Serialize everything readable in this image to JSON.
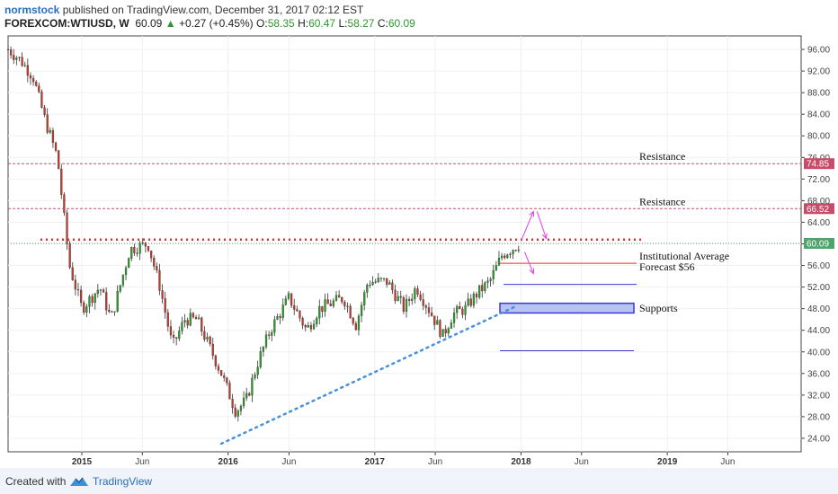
{
  "header": {
    "author": "normstock",
    "published": "published on TradingView.com, December 31, 2017 02:12 EST",
    "symbol": "FOREXCOM:WTIUSD, W",
    "last": "60.09",
    "change": "+0.27 (+0.45%)",
    "o_label": "O:",
    "o_value": "58.35",
    "h_label": "H:",
    "h_value": "60.47",
    "l_label": "L:",
    "l_value": "58.27",
    "c_label": "C:",
    "c_value": "60.09"
  },
  "footer": {
    "created": "Created with",
    "brand": "TradingView"
  },
  "colors": {
    "up": "#2b9a2b",
    "down": "#c0392b",
    "resistance": "#c84b6a",
    "dotted_resistance": "#e03030",
    "trendline": "#4a90d9",
    "support": "#3a3ad0",
    "forecast": "#e03030",
    "arrows": "#e040e0",
    "price_tag": "#4fa36b"
  },
  "chart_data": {
    "type": "candlestick",
    "y_axis": {
      "ticks": [
        "96.00",
        "92.00",
        "88.00",
        "84.00",
        "80.00",
        "76.00",
        "72.00",
        "68.00",
        "64.00",
        "60.00",
        "56.00",
        "52.00",
        "48.00",
        "44.00",
        "40.00",
        "36.00",
        "32.00",
        "28.00",
        "24.00"
      ],
      "ylim": [
        21.5,
        98.5
      ]
    },
    "x_axis": {
      "ticks": [
        {
          "label": "2015",
          "year": true
        },
        {
          "label": "Jun",
          "year": false
        },
        {
          "label": "2016",
          "year": true
        },
        {
          "label": "Jun",
          "year": false
        },
        {
          "label": "2017",
          "year": true
        },
        {
          "label": "Jun",
          "year": false
        },
        {
          "label": "2018",
          "year": true
        },
        {
          "label": "Jun",
          "year": false
        },
        {
          "label": "2019",
          "year": true
        },
        {
          "label": "Jun",
          "year": false
        }
      ]
    },
    "price_path": [
      [
        "2014-07-01",
        96
      ],
      [
        "2014-08-01",
        94
      ],
      [
        "2014-09-01",
        91
      ],
      [
        "2014-10-01",
        83
      ],
      [
        "2014-11-01",
        76
      ],
      [
        "2014-12-01",
        56
      ],
      [
        "2015-01-01",
        48
      ],
      [
        "2015-02-15",
        52
      ],
      [
        "2015-03-15",
        46
      ],
      [
        "2015-05-01",
        59
      ],
      [
        "2015-06-15",
        60
      ],
      [
        "2015-07-15",
        52
      ],
      [
        "2015-08-15",
        41
      ],
      [
        "2015-09-15",
        46
      ],
      [
        "2015-10-15",
        46
      ],
      [
        "2015-11-15",
        41
      ],
      [
        "2015-12-15",
        36
      ],
      [
        "2016-01-20",
        29
      ],
      [
        "2016-02-15",
        31
      ],
      [
        "2016-03-15",
        38
      ],
      [
        "2016-04-15",
        44
      ],
      [
        "2016-06-01",
        50
      ],
      [
        "2016-07-15",
        44
      ],
      [
        "2016-08-15",
        48
      ],
      [
        "2016-10-15",
        50
      ],
      [
        "2016-11-15",
        45
      ],
      [
        "2016-12-15",
        53
      ],
      [
        "2017-02-01",
        53
      ],
      [
        "2017-03-15",
        48
      ],
      [
        "2017-04-15",
        52
      ],
      [
        "2017-05-15",
        48
      ],
      [
        "2017-06-20",
        43
      ],
      [
        "2017-07-15",
        47
      ],
      [
        "2017-08-15",
        48
      ],
      [
        "2017-09-15",
        51
      ],
      [
        "2017-10-15",
        53
      ],
      [
        "2017-11-15",
        58
      ],
      [
        "2017-12-31",
        60.09
      ]
    ],
    "levels": [
      {
        "name": "Resistance",
        "value": 74.85,
        "tag": "74.85",
        "style": "dashed"
      },
      {
        "name": "Resistance",
        "value": 66.52,
        "tag": "66.52",
        "style": "dashed"
      },
      {
        "name": "",
        "value": 60.8,
        "tag": "",
        "style": "dotted"
      },
      {
        "name": "",
        "value": 60.09,
        "tag": "60.09",
        "style": "last"
      }
    ],
    "forecast": {
      "label_line1": "Institutional Average",
      "label_line2": "Forecast $56",
      "value": 56.4
    },
    "supports": {
      "label": "Supports",
      "lines": [
        52.5,
        40.2
      ],
      "zone": [
        47.2,
        49.0
      ]
    },
    "trendline": {
      "start": [
        "2015-12-15",
        23
      ],
      "end": [
        "2017-12-15",
        48.3
      ]
    },
    "arrows": [
      {
        "from": [
          "2018-01-01",
          60.5
        ],
        "to": [
          "2018-02-01",
          66
        ]
      },
      {
        "from": [
          "2018-02-10",
          66
        ],
        "to": [
          "2018-03-05",
          61
        ]
      },
      {
        "from": [
          "2018-01-10",
          58.5
        ],
        "to": [
          "2018-02-01",
          54.5
        ]
      }
    ]
  }
}
